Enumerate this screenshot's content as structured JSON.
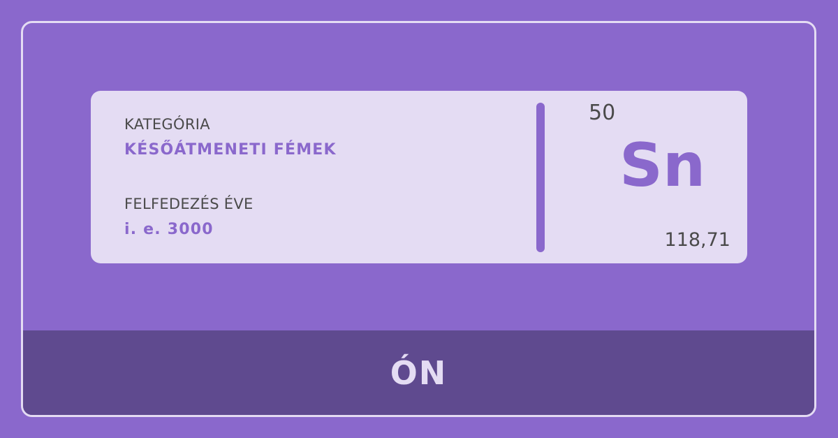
{
  "card": {
    "category_label": "KATEGÓRIA",
    "category_value": "KÉSŐÁTMENETI FÉMEK",
    "discovery_label": "FELFEDEZÉS ÉVE",
    "discovery_value": "i. e. 3000",
    "atomic_number": "50",
    "symbol": "Sn",
    "atomic_mass": "118,71"
  },
  "footer": {
    "element_name": "ÓN"
  },
  "colors": {
    "background": "#8a68cc",
    "card": "#e4dcf3",
    "accent": "#8a68cc",
    "footer": "#5f4a8f",
    "text": "#4a4a4a"
  }
}
